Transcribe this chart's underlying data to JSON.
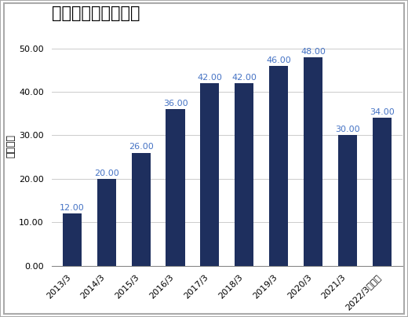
{
  "title": "アマダの配当金推移",
  "ylabel": "配当金額",
  "categories": [
    "2013/3",
    "2014/3",
    "2015/3",
    "2016/3",
    "2017/3",
    "2018/3",
    "2019/3",
    "2020/3",
    "2021/3",
    "2022/3（予）"
  ],
  "values": [
    12.0,
    20.0,
    26.0,
    36.0,
    42.0,
    42.0,
    46.0,
    48.0,
    30.0,
    34.0
  ],
  "bar_color": "#1e2f5e",
  "label_color": "#4472c4",
  "ylim": [
    0,
    55
  ],
  "yticks": [
    0.0,
    10.0,
    20.0,
    30.0,
    40.0,
    50.0
  ],
  "background_color": "#ffffff",
  "plot_background": "#ffffff",
  "border_color": "#aaaaaa",
  "title_fontsize": 15,
  "label_fontsize": 8,
  "tick_fontsize": 8,
  "ylabel_fontsize": 9
}
